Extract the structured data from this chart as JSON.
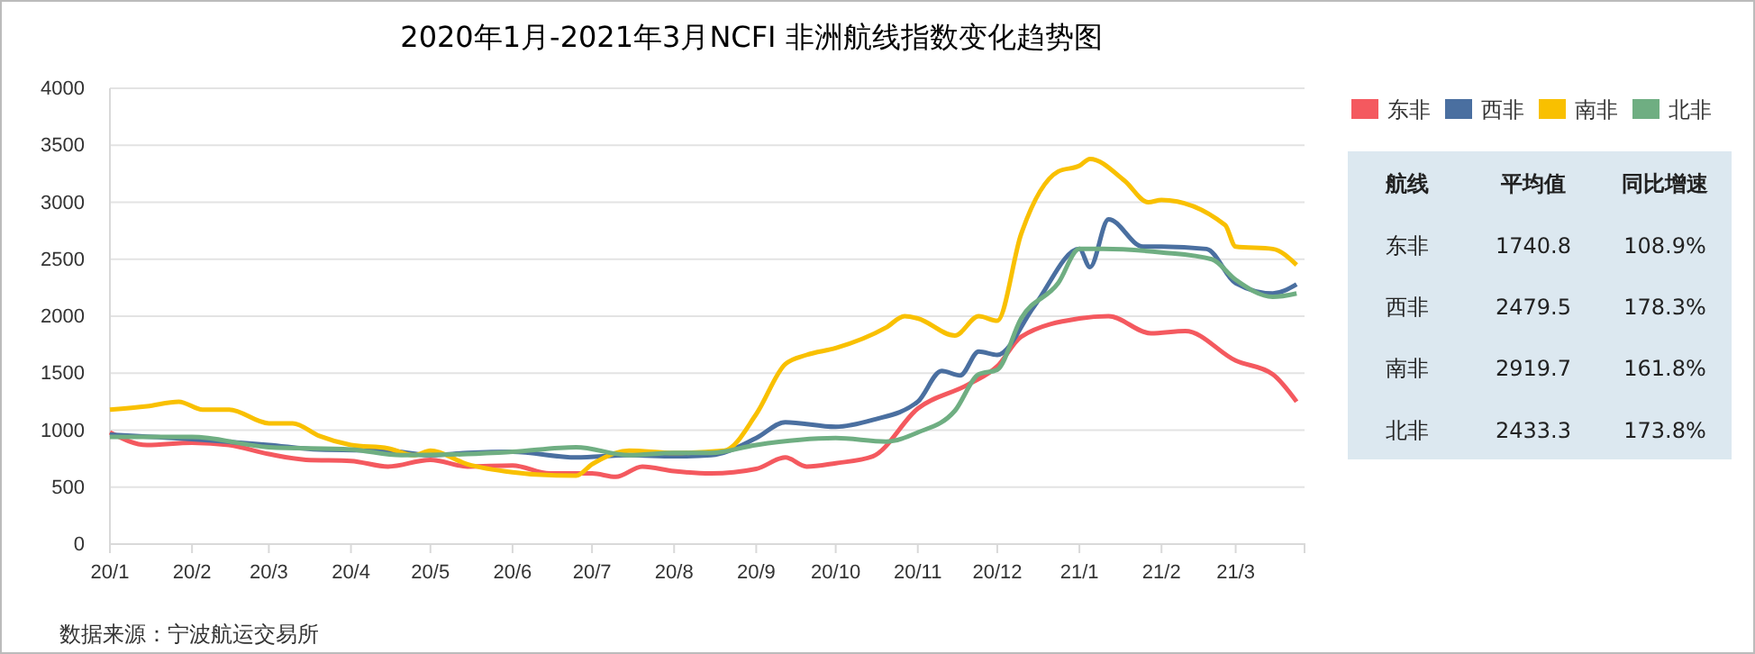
{
  "chart_data": [
    {
      "type": "line",
      "title": "2020年1月-2021年3月NCFI 非洲航线指数变化趋势图",
      "annotations": [
        "数据来源：宁波航运交易所"
      ],
      "legend": "top right",
      "grid": "y",
      "line_style": "solid",
      "marker": "none",
      "xlim": [
        "2020-01-01",
        "2021-03-27"
      ],
      "xticks": [
        {
          "value": "2020-01-01",
          "label": "20/1"
        },
        {
          "value": "2020-02-01",
          "label": "20/2"
        },
        {
          "value": "2020-03-01",
          "label": "20/3"
        },
        {
          "value": "2020-04-01",
          "label": "20/4"
        },
        {
          "value": "2020-05-01",
          "label": "20/5"
        },
        {
          "value": "2020-06-01",
          "label": "20/6"
        },
        {
          "value": "2020-07-01",
          "label": "20/7"
        },
        {
          "value": "2020-08-01",
          "label": "20/8"
        },
        {
          "value": "2020-09-01",
          "label": "20/9"
        },
        {
          "value": "2020-10-01",
          "label": "20/10"
        },
        {
          "value": "2020-11-01",
          "label": "20/11"
        },
        {
          "value": "2020-12-01",
          "label": "20/12"
        },
        {
          "value": "2021-01-01",
          "label": "21/1"
        },
        {
          "value": "2021-02-01",
          "label": "21/2"
        },
        {
          "value": "2021-03-01",
          "label": "21/3"
        }
      ],
      "ylim": [
        0,
        4000
      ],
      "yticks": [
        0,
        500,
        1000,
        1500,
        2000,
        2500,
        3000,
        3500,
        4000
      ],
      "series": [
        {
          "name": "东非",
          "color": "#f4595f",
          "x": [
            "2020-01-01",
            "2020-01-15",
            "2020-02-01",
            "2020-02-15",
            "2020-03-01",
            "2020-03-15",
            "2020-04-01",
            "2020-04-15",
            "2020-05-01",
            "2020-05-15",
            "2020-06-01",
            "2020-06-15",
            "2020-07-01",
            "2020-07-10",
            "2020-07-20",
            "2020-08-01",
            "2020-08-15",
            "2020-09-01",
            "2020-09-12",
            "2020-09-20",
            "2020-10-01",
            "2020-10-15",
            "2020-11-01",
            "2020-11-20",
            "2020-12-01",
            "2020-12-10",
            "2021-01-01",
            "2021-01-12",
            "2021-01-28",
            "2021-02-10",
            "2021-03-01",
            "2021-03-15",
            "2021-03-24"
          ],
          "values": [
            980,
            870,
            890,
            870,
            790,
            740,
            730,
            680,
            740,
            680,
            690,
            620,
            620,
            590,
            680,
            640,
            620,
            660,
            760,
            680,
            710,
            770,
            1190,
            1400,
            1560,
            1820,
            1980,
            2000,
            1850,
            1870,
            1610,
            1490,
            1250
          ]
        },
        {
          "name": "西非",
          "color": "#4a6fa0",
          "x": [
            "2020-01-01",
            "2020-02-01",
            "2020-03-01",
            "2020-03-20",
            "2020-04-15",
            "2020-05-01",
            "2020-05-15",
            "2020-06-01",
            "2020-06-25",
            "2020-07-15",
            "2020-08-01",
            "2020-08-15",
            "2020-09-01",
            "2020-09-12",
            "2020-10-01",
            "2020-10-15",
            "2020-11-01",
            "2020-11-10",
            "2020-11-17",
            "2020-11-24",
            "2020-12-01",
            "2020-12-15",
            "2021-01-01",
            "2021-01-05",
            "2021-01-12",
            "2021-01-25",
            "2021-02-01",
            "2021-02-18",
            "2021-03-01",
            "2021-03-15",
            "2021-03-24"
          ],
          "values": [
            960,
            920,
            870,
            830,
            820,
            780,
            800,
            810,
            760,
            780,
            770,
            780,
            930,
            1070,
            1030,
            1090,
            1250,
            1520,
            1480,
            1690,
            1660,
            2090,
            2590,
            2430,
            2850,
            2610,
            2610,
            2590,
            2290,
            2200,
            2280
          ]
        },
        {
          "name": "南非",
          "color": "#f9c000",
          "x": [
            "2020-01-01",
            "2020-01-15",
            "2020-01-27",
            "2020-02-05",
            "2020-02-15",
            "2020-03-01",
            "2020-03-10",
            "2020-03-20",
            "2020-04-01",
            "2020-04-15",
            "2020-04-25",
            "2020-05-01",
            "2020-05-15",
            "2020-06-01",
            "2020-06-10",
            "2020-06-25",
            "2020-07-01",
            "2020-07-15",
            "2020-08-01",
            "2020-08-20",
            "2020-09-01",
            "2020-09-12",
            "2020-09-20",
            "2020-10-01",
            "2020-10-20",
            "2020-10-27",
            "2020-11-01",
            "2020-11-15",
            "2020-11-24",
            "2020-12-01",
            "2020-12-10",
            "2020-12-24",
            "2021-01-01",
            "2021-01-05",
            "2021-01-18",
            "2021-01-27",
            "2021-02-01",
            "2021-02-25",
            "2021-03-01",
            "2021-03-15",
            "2021-03-24"
          ],
          "values": [
            1180,
            1210,
            1250,
            1180,
            1180,
            1060,
            1060,
            950,
            870,
            840,
            780,
            820,
            700,
            630,
            610,
            600,
            700,
            820,
            800,
            820,
            1140,
            1580,
            1660,
            1720,
            1900,
            2000,
            1980,
            1830,
            2000,
            1960,
            2720,
            3270,
            3320,
            3380,
            3190,
            3000,
            3020,
            2800,
            2610,
            2590,
            2450
          ]
        },
        {
          "name": "北非",
          "color": "#6fae82",
          "x": [
            "2020-01-01",
            "2020-02-01",
            "2020-03-01",
            "2020-04-01",
            "2020-04-20",
            "2020-05-15",
            "2020-06-01",
            "2020-06-25",
            "2020-07-15",
            "2020-08-01",
            "2020-08-15",
            "2020-09-01",
            "2020-10-01",
            "2020-10-20",
            "2020-11-01",
            "2020-11-15",
            "2020-11-24",
            "2020-12-01",
            "2020-12-10",
            "2020-12-24",
            "2021-01-01",
            "2021-01-10",
            "2021-02-01",
            "2021-02-20",
            "2021-03-01",
            "2021-03-15",
            "2021-03-24"
          ],
          "values": [
            940,
            940,
            850,
            830,
            780,
            790,
            810,
            850,
            780,
            800,
            800,
            870,
            930,
            900,
            980,
            1170,
            1490,
            1530,
            1980,
            2290,
            2590,
            2590,
            2560,
            2500,
            2320,
            2170,
            2200
          ]
        }
      ]
    },
    {
      "type": "other",
      "xlabel": "航线",
      "data_labels": true,
      "categories": [
        "东非",
        "西非",
        "南非",
        "北非"
      ],
      "series": [
        {
          "name": "平均值",
          "values": [
            1740.8,
            2479.5,
            2919.7,
            2433.3
          ]
        },
        {
          "name": "同比增速",
          "values": [
            108.9,
            178.3,
            161.8,
            173.8
          ],
          "value_labels": [
            "108.9%",
            "178.3%",
            "161.8%",
            "173.8%"
          ]
        }
      ]
    }
  ]
}
